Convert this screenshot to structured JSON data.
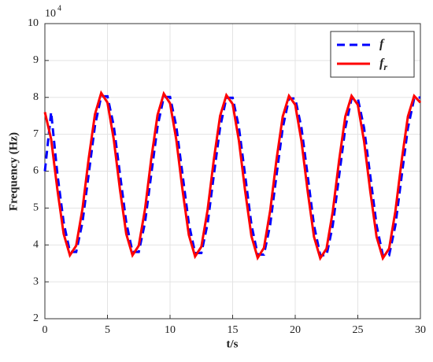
{
  "chart_data": {
    "type": "line",
    "xlabel": "t/s",
    "ylabel": "Frequency (Hz)",
    "y_multiplier": {
      "base": "10",
      "power": "4"
    },
    "x": [
      0,
      0.5,
      1,
      1.5,
      2,
      2.5,
      3,
      3.5,
      4,
      4.5,
      5,
      5.5,
      6,
      6.5,
      7,
      7.5,
      8,
      8.5,
      9,
      9.5,
      10,
      10.5,
      11,
      11.5,
      12,
      12.5,
      13,
      13.5,
      14,
      14.5,
      15,
      15.5,
      16,
      16.5,
      17,
      17.5,
      18,
      18.5,
      19,
      19.5,
      20,
      20.5,
      21,
      21.5,
      22,
      22.5,
      23,
      23.5,
      24,
      24.5,
      25,
      25.5,
      26,
      26.5,
      27,
      27.5,
      28,
      28.5,
      29,
      29.5,
      30
    ],
    "series": [
      {
        "name": "f",
        "color": "#0000ff",
        "dashed": true,
        "values": [
          6.0,
          7.6,
          5.92,
          4.61,
          3.81,
          3.81,
          4.61,
          5.92,
          7.23,
          8.03,
          8.03,
          7.23,
          5.92,
          4.61,
          3.81,
          3.81,
          4.61,
          5.92,
          7.21,
          8.01,
          8.01,
          7.21,
          5.9,
          4.58,
          3.78,
          3.78,
          4.58,
          5.9,
          7.19,
          7.99,
          7.99,
          7.19,
          5.88,
          4.55,
          3.74,
          3.74,
          4.55,
          5.88,
          7.17,
          7.97,
          7.97,
          7.17,
          5.86,
          4.53,
          3.72,
          3.72,
          4.53,
          5.86,
          7.17,
          7.97,
          7.97,
          7.17,
          5.86,
          4.53,
          3.72,
          3.72,
          4.53,
          5.86,
          7.17,
          7.97,
          8.0
        ]
      },
      {
        "name": "fr",
        "color": "#ff0000",
        "dashed": false,
        "values": [
          7.6,
          6.87,
          5.5,
          4.3,
          3.72,
          3.98,
          4.97,
          6.34,
          7.54,
          8.12,
          7.86,
          6.87,
          5.5,
          4.3,
          3.72,
          3.98,
          4.97,
          6.34,
          7.52,
          8.1,
          7.84,
          6.85,
          5.48,
          4.27,
          3.69,
          3.95,
          4.95,
          6.32,
          7.5,
          8.06,
          7.82,
          6.83,
          5.46,
          4.24,
          3.65,
          3.92,
          4.93,
          6.3,
          7.48,
          8.04,
          7.8,
          6.81,
          5.44,
          4.22,
          3.64,
          3.9,
          4.91,
          6.28,
          7.48,
          8.04,
          7.8,
          6.81,
          5.44,
          4.22,
          3.64,
          3.9,
          4.91,
          6.28,
          7.48,
          8.04,
          7.86
        ]
      }
    ],
    "xlim": [
      0,
      30
    ],
    "xticks": [
      0,
      5,
      10,
      15,
      20,
      25,
      30
    ],
    "ylim": [
      2,
      10
    ],
    "yticks": [
      2,
      3,
      4,
      5,
      6,
      7,
      8,
      9,
      10
    ],
    "grid": true,
    "legend": "top-right"
  }
}
